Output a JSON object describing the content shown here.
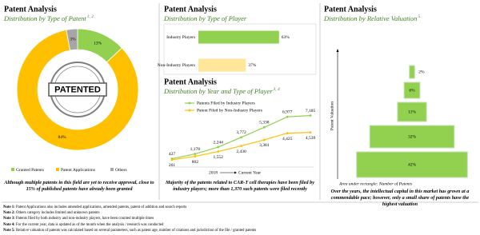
{
  "chart_data": [
    {
      "type": "pie",
      "title": "Patent Analysis",
      "subtitle": "Distribution by Type of Patent",
      "subtitle_note": "1, 2",
      "categories": [
        "Granted Patents",
        "Patent Applications",
        "Others"
      ],
      "values": [
        13,
        84,
        3
      ],
      "value_labels": [
        "13%",
        "84%",
        "3%"
      ],
      "colors": [
        "#92d050",
        "#ffc000",
        "#a6a6a6"
      ],
      "center_label": "PATENTED",
      "caption": "Although multiple patents in this field are yet to receive approval, close to 15% of published patents have already been granted"
    },
    {
      "type": "bar",
      "orientation": "horizontal",
      "title": "Patent Analysis",
      "subtitle": "Distribution by Type of Player",
      "categories": [
        "Industry Players",
        "Non-Industry Players"
      ],
      "values": [
        63,
        37
      ],
      "value_labels": [
        "63%",
        "37%"
      ],
      "colors": [
        "#92d050",
        "#ffe699"
      ],
      "xlim": [
        0,
        100
      ]
    },
    {
      "type": "line",
      "title": "Patent Analysis",
      "subtitle": "Distribution by Year and Type of Player",
      "subtitle_note": "3, 4",
      "categories": [
        null,
        null,
        null,
        null,
        null,
        null,
        null
      ],
      "series": [
        {
          "name": "Patents Filed by Industry Players",
          "color": "#92d050",
          "values": [
            427,
            1178,
            2244,
            3772,
            5338,
            6977,
            7185
          ],
          "value_labels": [
            "427",
            "1,178",
            "2,244",
            "3,772",
            "5,338",
            "6,977",
            "7,185"
          ]
        },
        {
          "name": "Patent Filed by Non-Industry Players",
          "color": "#ffc000",
          "values": [
            261,
            802,
            1552,
            2430,
            3381,
            4425,
            4539
          ],
          "value_labels": [
            "261",
            "802",
            "1,552",
            "2,430",
            "3,381",
            "4,425",
            "4,539"
          ]
        }
      ],
      "ylim": [
        0,
        8000
      ],
      "x_label": "2018",
      "x_label_end": "Current Year",
      "caption": "Majority of the patents related to CAR-T cell therapies have been filed by industry players; more than 1,370 such patents were filed recently"
    },
    {
      "type": "funnel",
      "title": "Patent Analysis",
      "subtitle": "Distribution by Relative Valuation",
      "subtitle_note": "5",
      "values": [
        2,
        6,
        11,
        32,
        42
      ],
      "value_labels": [
        "2%",
        "6%",
        "11%",
        "32%",
        "42%"
      ],
      "color": "#92d050",
      "y_label": "Patent Valuation",
      "footer": "Area under rectangle: Number of Patents",
      "caption": "Over the years, the intellectual capital in this market has grown at a commendable pace; however, only a small share of patents have the highest valuation"
    }
  ],
  "notes": [
    {
      "label": "Note 1:",
      "text": "Patent Applications also includes amended applications, amended patents, patent of addition and search reports"
    },
    {
      "label": "Note 2:",
      "text": "Others category includes limited and unknown patents"
    },
    {
      "label": "Note 3:",
      "text": "Patents filed by both industry and non-industry players, have been counted multiple times"
    },
    {
      "label": "Note 4:",
      "text": "For the current year, data is updated as of the month when the analysis / research was conducted"
    },
    {
      "label": "Note 5:",
      "text": "Relative valuation of patents was calculated based on several parameters, such as patent age, number of citations and jurisdiction of the file / granted patents"
    }
  ]
}
